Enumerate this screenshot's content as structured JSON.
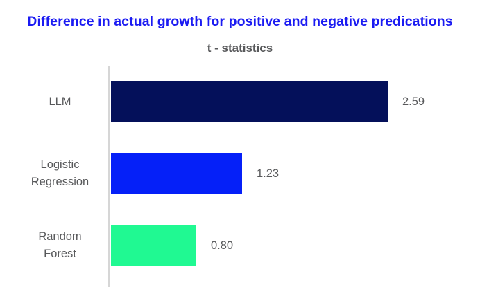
{
  "header": {
    "title": "Difference in actual growth for positive and negative predications",
    "subtitle": "t - statistics"
  },
  "chart_data": {
    "type": "bar",
    "orientation": "horizontal",
    "title": "Difference in actual growth for positive and negative predications",
    "subtitle": "t - statistics",
    "categories": [
      "LLM",
      "Logistic Regression",
      "Random Forest"
    ],
    "values": [
      2.59,
      1.23,
      0.8
    ],
    "value_labels": [
      "2.59",
      "1.23",
      "0.80"
    ],
    "bar_colors": [
      "#04105a",
      "#0520f8",
      "#20f992"
    ],
    "xlim": [
      0,
      2.8
    ],
    "grid": false,
    "legend": false,
    "value_labels_position": "right-of-bar"
  },
  "colors": {
    "title": "#1b1bf2",
    "text": "#58595b",
    "axis": "#d6d6d6",
    "background": "#ffffff"
  }
}
